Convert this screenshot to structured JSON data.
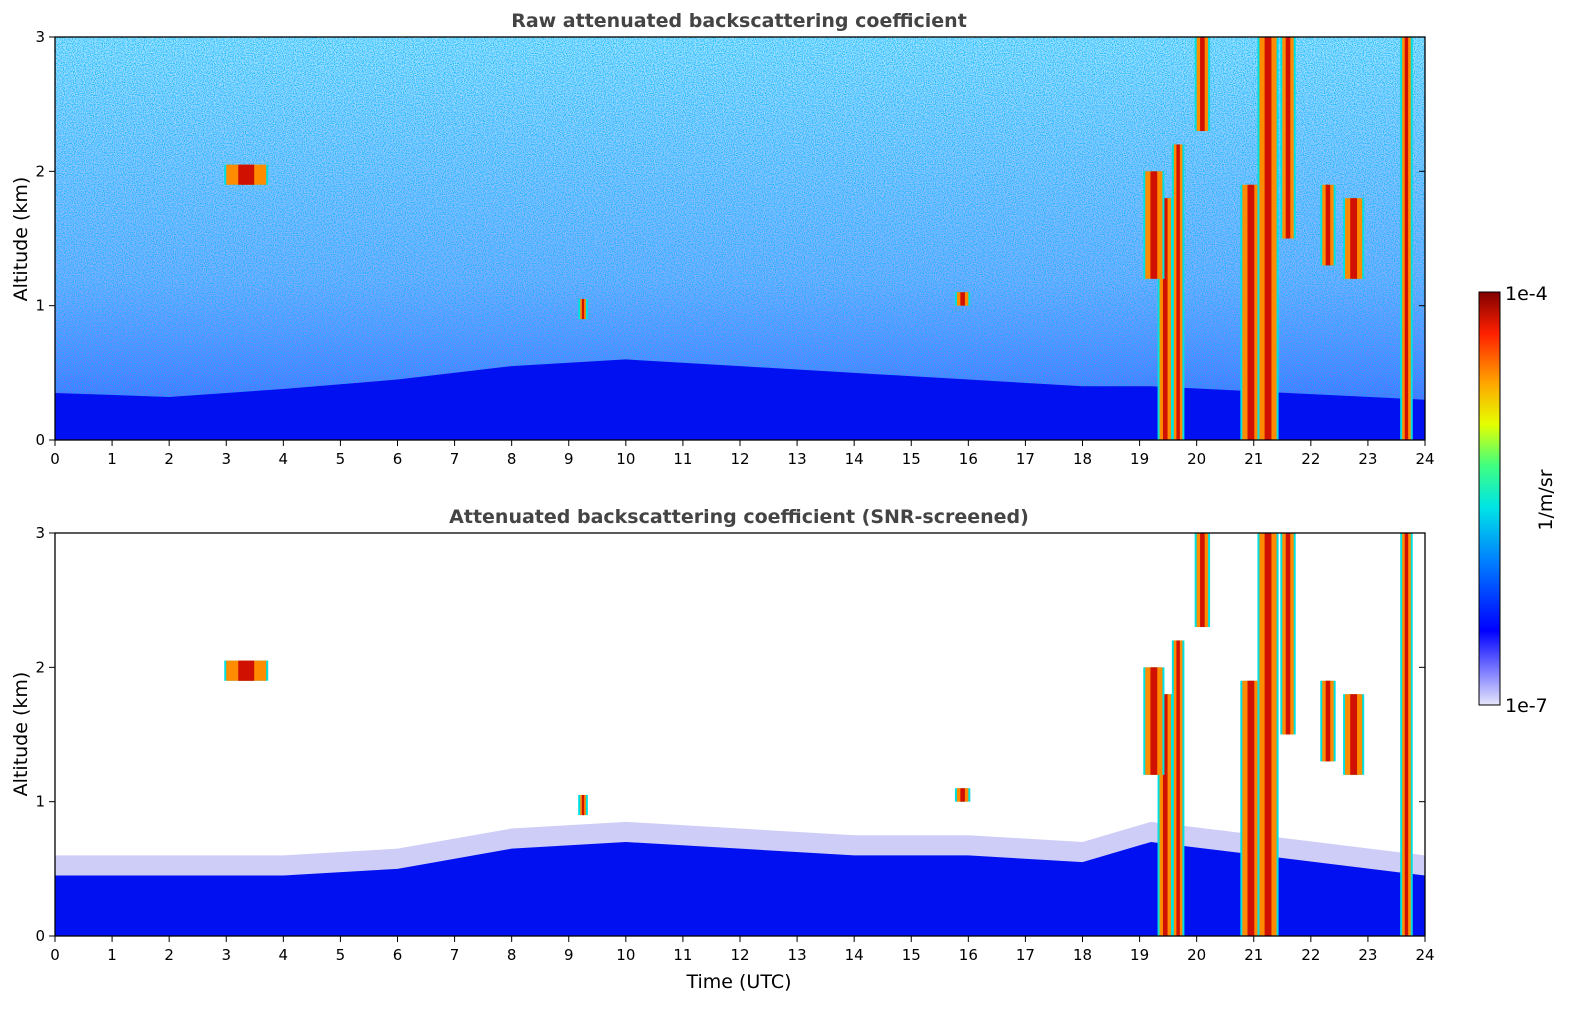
{
  "chart_data": [
    {
      "type": "heatmap",
      "title": "Raw attenuated backscattering coefficient",
      "ylabel": "Altitude (km)",
      "xlabel": "",
      "xlim": [
        0,
        24
      ],
      "ylim": [
        0,
        3
      ],
      "xticks": [
        "0",
        "1",
        "2",
        "3",
        "4",
        "5",
        "6",
        "7",
        "8",
        "9",
        "10",
        "11",
        "12",
        "13",
        "14",
        "15",
        "16",
        "17",
        "18",
        "19",
        "20",
        "21",
        "22",
        "23",
        "24"
      ],
      "yticks": [
        "0",
        "1",
        "2",
        "3"
      ],
      "grid": false,
      "background_noise": true,
      "boundary_layer": [
        {
          "x": 0,
          "top": 0.35
        },
        {
          "x": 2,
          "top": 0.32
        },
        {
          "x": 4,
          "top": 0.38
        },
        {
          "x": 6,
          "top": 0.45
        },
        {
          "x": 8,
          "top": 0.55
        },
        {
          "x": 10,
          "top": 0.6
        },
        {
          "x": 12,
          "top": 0.55
        },
        {
          "x": 14,
          "top": 0.5
        },
        {
          "x": 16,
          "top": 0.45
        },
        {
          "x": 18,
          "top": 0.4
        },
        {
          "x": 19.2,
          "top": 0.4
        },
        {
          "x": 24,
          "top": 0.3
        }
      ],
      "strong_features": [
        {
          "x0": 19.35,
          "x1": 19.55,
          "y0": 0.0,
          "y1": 1.8
        },
        {
          "x0": 19.6,
          "x1": 19.75,
          "y0": 0.0,
          "y1": 2.2
        },
        {
          "x0": 19.1,
          "x1": 19.4,
          "y0": 1.2,
          "y1": 2.0
        },
        {
          "x0": 20.8,
          "x1": 21.1,
          "y0": 0.0,
          "y1": 1.9
        },
        {
          "x0": 21.1,
          "x1": 21.4,
          "y0": 0.0,
          "y1": 3.0
        },
        {
          "x0": 21.5,
          "x1": 21.7,
          "y0": 1.5,
          "y1": 3.0
        },
        {
          "x0": 20.0,
          "x1": 20.2,
          "y0": 2.3,
          "y1": 3.0
        },
        {
          "x0": 23.6,
          "x1": 23.75,
          "y0": 0.0,
          "y1": 3.0
        },
        {
          "x0": 22.2,
          "x1": 22.4,
          "y0": 1.3,
          "y1": 1.9
        },
        {
          "x0": 22.6,
          "x1": 22.9,
          "y0": 1.2,
          "y1": 1.8
        },
        {
          "x0": 3.0,
          "x1": 3.7,
          "y0": 1.9,
          "y1": 2.05
        },
        {
          "x0": 9.2,
          "x1": 9.3,
          "y0": 0.9,
          "y1": 1.05
        },
        {
          "x0": 15.8,
          "x1": 16.0,
          "y0": 1.0,
          "y1": 1.1
        }
      ]
    },
    {
      "type": "heatmap",
      "title": "Attenuated backscattering coefficient (SNR-screened)",
      "ylabel": "Altitude (km)",
      "xlabel": "Time (UTC)",
      "xlim": [
        0,
        24
      ],
      "ylim": [
        0,
        3
      ],
      "xticks": [
        "0",
        "1",
        "2",
        "3",
        "4",
        "5",
        "6",
        "7",
        "8",
        "9",
        "10",
        "11",
        "12",
        "13",
        "14",
        "15",
        "16",
        "17",
        "18",
        "19",
        "20",
        "21",
        "22",
        "23",
        "24"
      ],
      "yticks": [
        "0",
        "1",
        "2",
        "3"
      ],
      "grid": false,
      "background_noise": false,
      "boundary_layer": [
        {
          "x": 0,
          "top": 0.45
        },
        {
          "x": 2,
          "top": 0.45
        },
        {
          "x": 4,
          "top": 0.45
        },
        {
          "x": 6,
          "top": 0.5
        },
        {
          "x": 8,
          "top": 0.65
        },
        {
          "x": 10,
          "top": 0.7
        },
        {
          "x": 12,
          "top": 0.65
        },
        {
          "x": 14,
          "top": 0.6
        },
        {
          "x": 16,
          "top": 0.6
        },
        {
          "x": 18,
          "top": 0.55
        },
        {
          "x": 19.2,
          "top": 0.7
        },
        {
          "x": 24,
          "top": 0.45
        }
      ],
      "strong_features": [
        {
          "x0": 19.35,
          "x1": 19.55,
          "y0": 0.0,
          "y1": 1.8
        },
        {
          "x0": 19.6,
          "x1": 19.75,
          "y0": 0.0,
          "y1": 2.2
        },
        {
          "x0": 19.1,
          "x1": 19.4,
          "y0": 1.2,
          "y1": 2.0
        },
        {
          "x0": 20.8,
          "x1": 21.1,
          "y0": 0.0,
          "y1": 1.9
        },
        {
          "x0": 21.1,
          "x1": 21.4,
          "y0": 0.0,
          "y1": 3.0
        },
        {
          "x0": 21.5,
          "x1": 21.7,
          "y0": 1.5,
          "y1": 3.0
        },
        {
          "x0": 20.0,
          "x1": 20.2,
          "y0": 2.3,
          "y1": 3.0
        },
        {
          "x0": 23.6,
          "x1": 23.75,
          "y0": 0.0,
          "y1": 3.0
        },
        {
          "x0": 22.2,
          "x1": 22.4,
          "y0": 1.3,
          "y1": 1.9
        },
        {
          "x0": 22.6,
          "x1": 22.9,
          "y0": 1.2,
          "y1": 1.8
        },
        {
          "x0": 3.0,
          "x1": 3.7,
          "y0": 1.9,
          "y1": 2.05
        },
        {
          "x0": 9.2,
          "x1": 9.3,
          "y0": 0.9,
          "y1": 1.05
        },
        {
          "x0": 15.8,
          "x1": 16.0,
          "y0": 1.0,
          "y1": 1.1
        }
      ]
    }
  ],
  "colorbar": {
    "max_label": "1e-4",
    "min_label": "1e-7",
    "unit_label": "1/m/sr",
    "colors": [
      "#e6e6fa",
      "#8080ff",
      "#0000ff",
      "#0080ff",
      "#00e5e5",
      "#40ff80",
      "#e5ff00",
      "#ffa500",
      "#ff2000",
      "#800000"
    ]
  }
}
